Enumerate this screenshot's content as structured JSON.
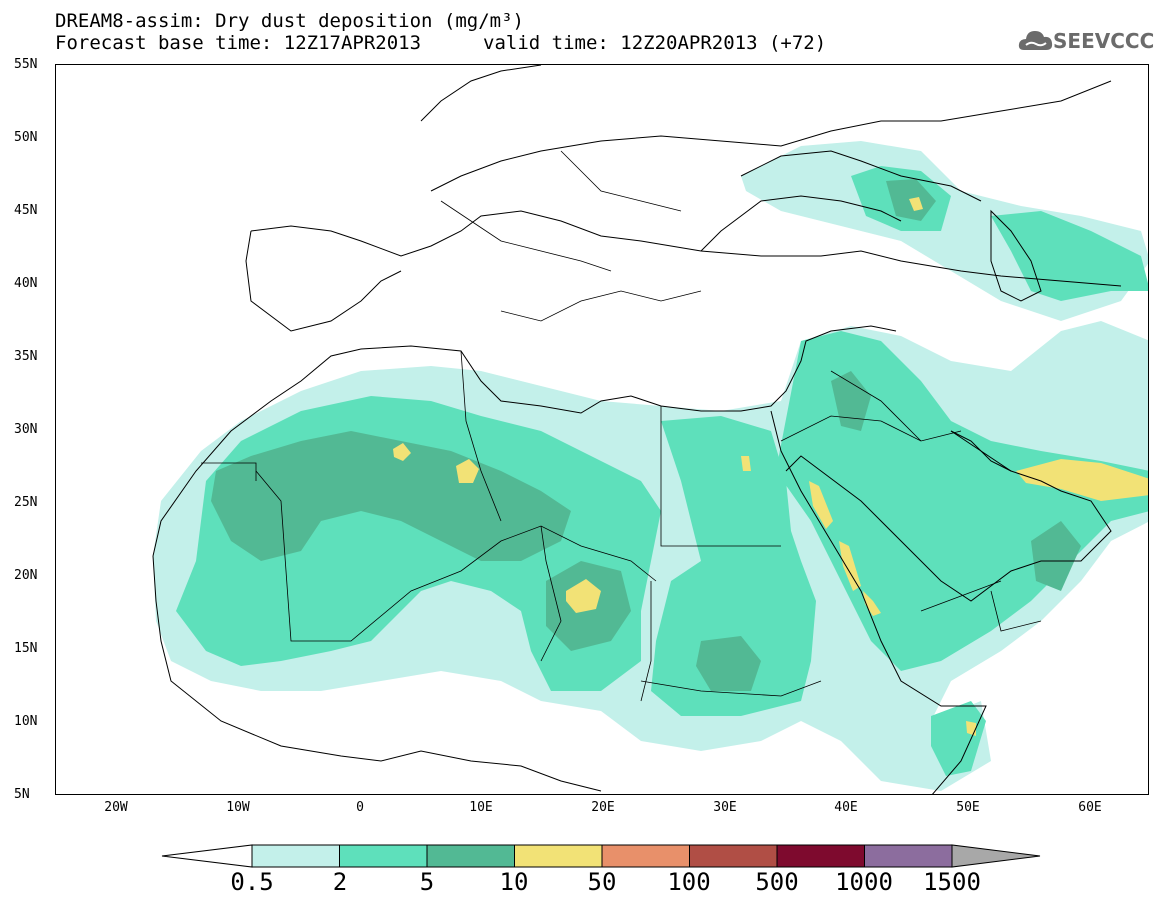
{
  "header": {
    "title_line1": "DREAM8-assim: Dry dust deposition (mg/m³)",
    "title_line2_left": "Forecast base time: 12Z17APR2013",
    "title_line2_right": "valid time: 12Z20APR2013 (+72)",
    "logo_text": "SEEVCCC"
  },
  "map": {
    "lat_labels": [
      "55N",
      "50N",
      "45N",
      "40N",
      "35N",
      "30N",
      "25N",
      "20N",
      "15N",
      "10N",
      "5N"
    ],
    "lon_labels": [
      "20W",
      "10W",
      "0",
      "10E",
      "20E",
      "30E",
      "40E",
      "50E",
      "60E"
    ],
    "extent": {
      "lon_min": -25,
      "lon_max": 65,
      "lat_min": 5,
      "lat_max": 55
    }
  },
  "legend": {
    "levels": [
      "0.5",
      "2",
      "5",
      "10",
      "50",
      "100",
      "500",
      "1000",
      "1500"
    ],
    "colors": [
      "#c3f0ea",
      "#5ee0bb",
      "#52b994",
      "#f2e276",
      "#e8906a",
      "#b04e45",
      "#7e0a2e",
      "#8c6d9e",
      "#a8a8a8"
    ]
  }
}
